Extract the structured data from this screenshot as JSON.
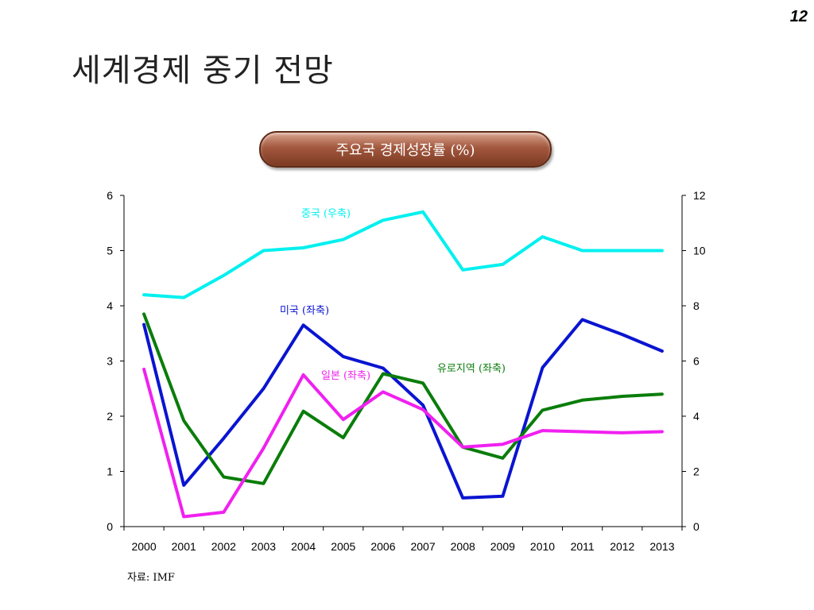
{
  "page": {
    "number": "12",
    "title": "세계경제 중기 전망",
    "source": "자료: IMF"
  },
  "chart_data": {
    "type": "line",
    "title": "주요국 경제성장률 (%)",
    "categories": [
      "2000",
      "2001",
      "2002",
      "2003",
      "2004",
      "2005",
      "2006",
      "2007",
      "2008",
      "2009",
      "2010",
      "2011",
      "2012",
      "2013"
    ],
    "left_axis": {
      "ticks": [
        "0",
        "1",
        "2",
        "3",
        "4",
        "5",
        "6"
      ],
      "range": [
        0,
        6
      ]
    },
    "right_axis": {
      "ticks": [
        "0",
        "2",
        "4",
        "6",
        "8",
        "10",
        "12"
      ],
      "range": [
        0,
        12
      ]
    },
    "grid": false,
    "series": [
      {
        "name": "중국 (우축)",
        "axis": "right",
        "color": "#00f0f0",
        "values": [
          8.4,
          8.3,
          9.1,
          10.0,
          10.1,
          10.4,
          11.1,
          11.4,
          9.3,
          9.5,
          10.5,
          10.0,
          10.0,
          10.0
        ]
      },
      {
        "name": "미국 (좌축)",
        "axis": "left",
        "color": "#0a14d0",
        "values": [
          3.66,
          0.75,
          1.6,
          2.5,
          3.65,
          3.08,
          2.87,
          2.2,
          0.52,
          0.55,
          2.88,
          3.75,
          3.48,
          3.18
        ]
      },
      {
        "name": "유로지역 (좌축)",
        "axis": "left",
        "color": "#0a7d0a",
        "values": [
          3.85,
          1.92,
          0.9,
          0.78,
          2.09,
          1.61,
          2.77,
          2.6,
          1.44,
          1.24,
          2.11,
          2.29,
          2.36,
          2.4
        ]
      },
      {
        "name": "일본 (좌축)",
        "axis": "left",
        "color": "#f020f0",
        "values": [
          2.85,
          0.18,
          0.26,
          1.42,
          2.75,
          1.94,
          2.44,
          2.12,
          1.44,
          1.49,
          1.74,
          1.72,
          1.7,
          1.72
        ]
      }
    ]
  }
}
